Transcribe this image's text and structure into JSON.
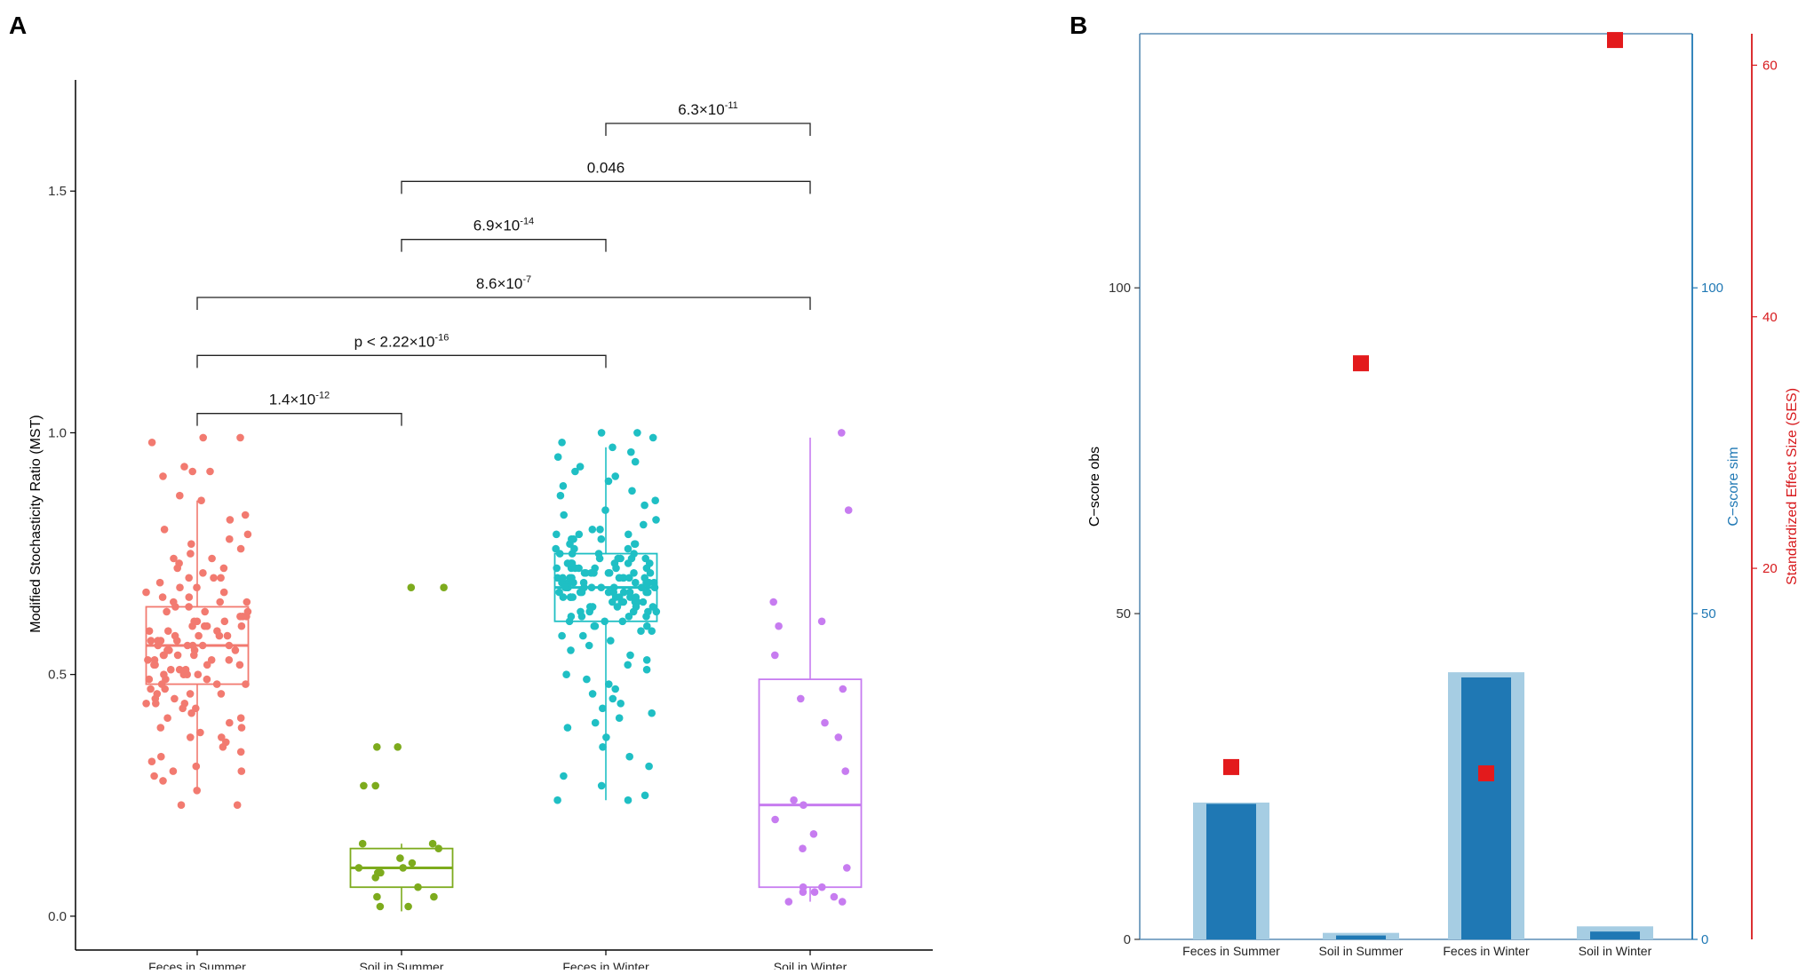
{
  "panels": {
    "a_letter": "A",
    "b_letter": "B"
  },
  "chart_data": [
    {
      "type": "boxplot",
      "panel": "A",
      "ylabel": "Modified Stochasticity Ratio (MST)",
      "ylim": [
        -0.07,
        1.73
      ],
      "yticks": [
        0.0,
        0.5,
        1.0,
        1.5
      ],
      "ytick_labels": [
        "0.0",
        "0.5",
        "1.0",
        "1.5"
      ],
      "categories": [
        "Feces in Summer",
        "Soil in Summer",
        "Feces in Winter",
        "Soil in Winter"
      ],
      "colors": [
        "#f27a70",
        "#7dab1d",
        "#1fbfc4",
        "#c77cf0"
      ],
      "boxes": [
        {
          "q1": 0.48,
          "median": 0.56,
          "q3": 0.64,
          "whisker_low": 0.26,
          "whisker_high": 0.86
        },
        {
          "q1": 0.06,
          "median": 0.1,
          "q3": 0.14,
          "whisker_low": 0.01,
          "whisker_high": 0.15
        },
        {
          "q1": 0.61,
          "median": 0.68,
          "q3": 0.75,
          "whisker_low": 0.24,
          "whisker_high": 0.97
        },
        {
          "q1": 0.06,
          "median": 0.23,
          "q3": 0.49,
          "whisker_low": 0.03,
          "whisker_high": 0.99
        }
      ],
      "points": [
        {
          "values": [
            0.99,
            0.98,
            0.99,
            0.93,
            0.92,
            0.92,
            0.91,
            0.87,
            0.86,
            0.83,
            0.82,
            0.8,
            0.79,
            0.78,
            0.77,
            0.76,
            0.75,
            0.74,
            0.73,
            0.72,
            0.71,
            0.7,
            0.7,
            0.69,
            0.68,
            0.68,
            0.67,
            0.66,
            0.66,
            0.65,
            0.65,
            0.64,
            0.64,
            0.63,
            0.63,
            0.62,
            0.62,
            0.61,
            0.61,
            0.6,
            0.6,
            0.6,
            0.59,
            0.59,
            0.58,
            0.58,
            0.58,
            0.57,
            0.57,
            0.57,
            0.56,
            0.56,
            0.56,
            0.56,
            0.55,
            0.55,
            0.55,
            0.54,
            0.54,
            0.54,
            0.53,
            0.53,
            0.53,
            0.52,
            0.52,
            0.52,
            0.51,
            0.51,
            0.51,
            0.5,
            0.5,
            0.5,
            0.49,
            0.49,
            0.49,
            0.48,
            0.48,
            0.47,
            0.47,
            0.46,
            0.46,
            0.45,
            0.45,
            0.44,
            0.44,
            0.43,
            0.43,
            0.42,
            0.41,
            0.4,
            0.39,
            0.38,
            0.37,
            0.36,
            0.35,
            0.34,
            0.33,
            0.32,
            0.31,
            0.3,
            0.3,
            0.29,
            0.28,
            0.26,
            0.23,
            0.23,
            0.6,
            0.58,
            0.62,
            0.55,
            0.53,
            0.57,
            0.59,
            0.61,
            0.56,
            0.54,
            0.52,
            0.5,
            0.63,
            0.65,
            0.67,
            0.48,
            0.46,
            0.44,
            0.7,
            0.72,
            0.41,
            0.39,
            0.74,
            0.37
          ]
        },
        {
          "values": [
            0.68,
            0.68,
            0.35,
            0.35,
            0.27,
            0.27,
            0.15,
            0.15,
            0.14,
            0.12,
            0.11,
            0.1,
            0.1,
            0.09,
            0.09,
            0.08,
            0.06,
            0.04,
            0.04,
            0.02,
            0.02
          ]
        },
        {
          "values": [
            1.0,
            1.0,
            0.99,
            0.98,
            0.97,
            0.96,
            0.95,
            0.94,
            0.93,
            0.92,
            0.91,
            0.9,
            0.89,
            0.88,
            0.87,
            0.86,
            0.85,
            0.84,
            0.83,
            0.82,
            0.81,
            0.8,
            0.8,
            0.79,
            0.79,
            0.78,
            0.78,
            0.77,
            0.77,
            0.76,
            0.76,
            0.75,
            0.75,
            0.75,
            0.74,
            0.74,
            0.74,
            0.73,
            0.73,
            0.73,
            0.72,
            0.72,
            0.72,
            0.71,
            0.71,
            0.71,
            0.7,
            0.7,
            0.7,
            0.7,
            0.69,
            0.69,
            0.69,
            0.69,
            0.68,
            0.68,
            0.68,
            0.68,
            0.67,
            0.67,
            0.67,
            0.67,
            0.66,
            0.66,
            0.66,
            0.66,
            0.65,
            0.65,
            0.65,
            0.64,
            0.64,
            0.64,
            0.63,
            0.63,
            0.63,
            0.62,
            0.62,
            0.62,
            0.61,
            0.61,
            0.6,
            0.6,
            0.59,
            0.59,
            0.58,
            0.58,
            0.57,
            0.56,
            0.55,
            0.54,
            0.53,
            0.52,
            0.51,
            0.5,
            0.49,
            0.48,
            0.47,
            0.46,
            0.45,
            0.44,
            0.43,
            0.42,
            0.41,
            0.4,
            0.39,
            0.37,
            0.35,
            0.33,
            0.31,
            0.29,
            0.27,
            0.25,
            0.24,
            0.24,
            0.7,
            0.69,
            0.68,
            0.71,
            0.67,
            0.72,
            0.66,
            0.73,
            0.65,
            0.74,
            0.64,
            0.75,
            0.63,
            0.76,
            0.62,
            0.77,
            0.61,
            0.78,
            0.6,
            0.79,
            0.69,
            0.68,
            0.7,
            0.67,
            0.71,
            0.66,
            0.72,
            0.65,
            0.73,
            0.64,
            0.74,
            0.63,
            0.68,
            0.69,
            0.7,
            0.71,
            0.67,
            0.66,
            0.72,
            0.65,
            0.73,
            0.68,
            0.69,
            0.7,
            0.67,
            0.71,
            0.66,
            0.72,
            0.68,
            0.69,
            0.7,
            0.67,
            0.71,
            0.68,
            0.69,
            0.7
          ]
        },
        {
          "values": [
            1.0,
            0.84,
            0.65,
            0.61,
            0.6,
            0.54,
            0.47,
            0.45,
            0.4,
            0.37,
            0.3,
            0.24,
            0.23,
            0.2,
            0.17,
            0.14,
            0.1,
            0.06,
            0.06,
            0.05,
            0.05,
            0.04,
            0.03,
            0.03
          ]
        }
      ],
      "comparisons": [
        {
          "from": 2,
          "to": 3,
          "y": 1.64,
          "base": "6.3×10",
          "exp": "-11"
        },
        {
          "from": 1,
          "to": 3,
          "y": 1.52,
          "base": "0.046",
          "exp": ""
        },
        {
          "from": 1,
          "to": 2,
          "y": 1.4,
          "base": "6.9×10",
          "exp": "-14"
        },
        {
          "from": 0,
          "to": 3,
          "y": 1.28,
          "base": "8.6×10",
          "exp": "-7"
        },
        {
          "from": 0,
          "to": 2,
          "y": 1.16,
          "base": "p < 2.22×10",
          "exp": "-16"
        },
        {
          "from": 0,
          "to": 1,
          "y": 1.04,
          "base": "1.4×10",
          "exp": "-12"
        }
      ]
    },
    {
      "type": "bar",
      "panel": "B",
      "categories": [
        "Feces in Summer",
        "Soil in Summer",
        "Feces in Winter",
        "Soil in Winter"
      ],
      "series": [
        {
          "name": "C-score sim",
          "axis": "right1",
          "color": "#a6cde3",
          "values": [
            21,
            1,
            41,
            2
          ]
        },
        {
          "name": "C-score obs",
          "axis": "left",
          "color": "#1f78b4",
          "values": [
            20.8,
            0.6,
            40.2,
            1.2
          ]
        },
        {
          "name": "SES",
          "axis": "right2",
          "color": "#e31a1c",
          "marker": "square",
          "values": [
            4.2,
            36.3,
            3.7,
            62.0
          ]
        }
      ],
      "ylabel": "C−score obs",
      "y2label": "C−score sim",
      "y3label": "Standardized Effect Size (SES)",
      "ylim": [
        0,
        139
      ],
      "y2lim": [
        0,
        139
      ],
      "y3lim": [
        -9.5,
        62.5
      ],
      "yticks": [
        0,
        50,
        100
      ],
      "ytick_labels": [
        "0",
        "50",
        "100"
      ],
      "y2ticks": [
        0,
        50,
        100
      ],
      "y2tick_labels": [
        "0",
        "50",
        "100"
      ],
      "y3ticks": [
        20,
        40,
        60
      ],
      "y3tick_labels": [
        "20",
        "40",
        "60"
      ],
      "left_axis_color": "#333333",
      "right1_axis_color": "#1f78b4",
      "right2_axis_color": "#d7191c"
    }
  ]
}
